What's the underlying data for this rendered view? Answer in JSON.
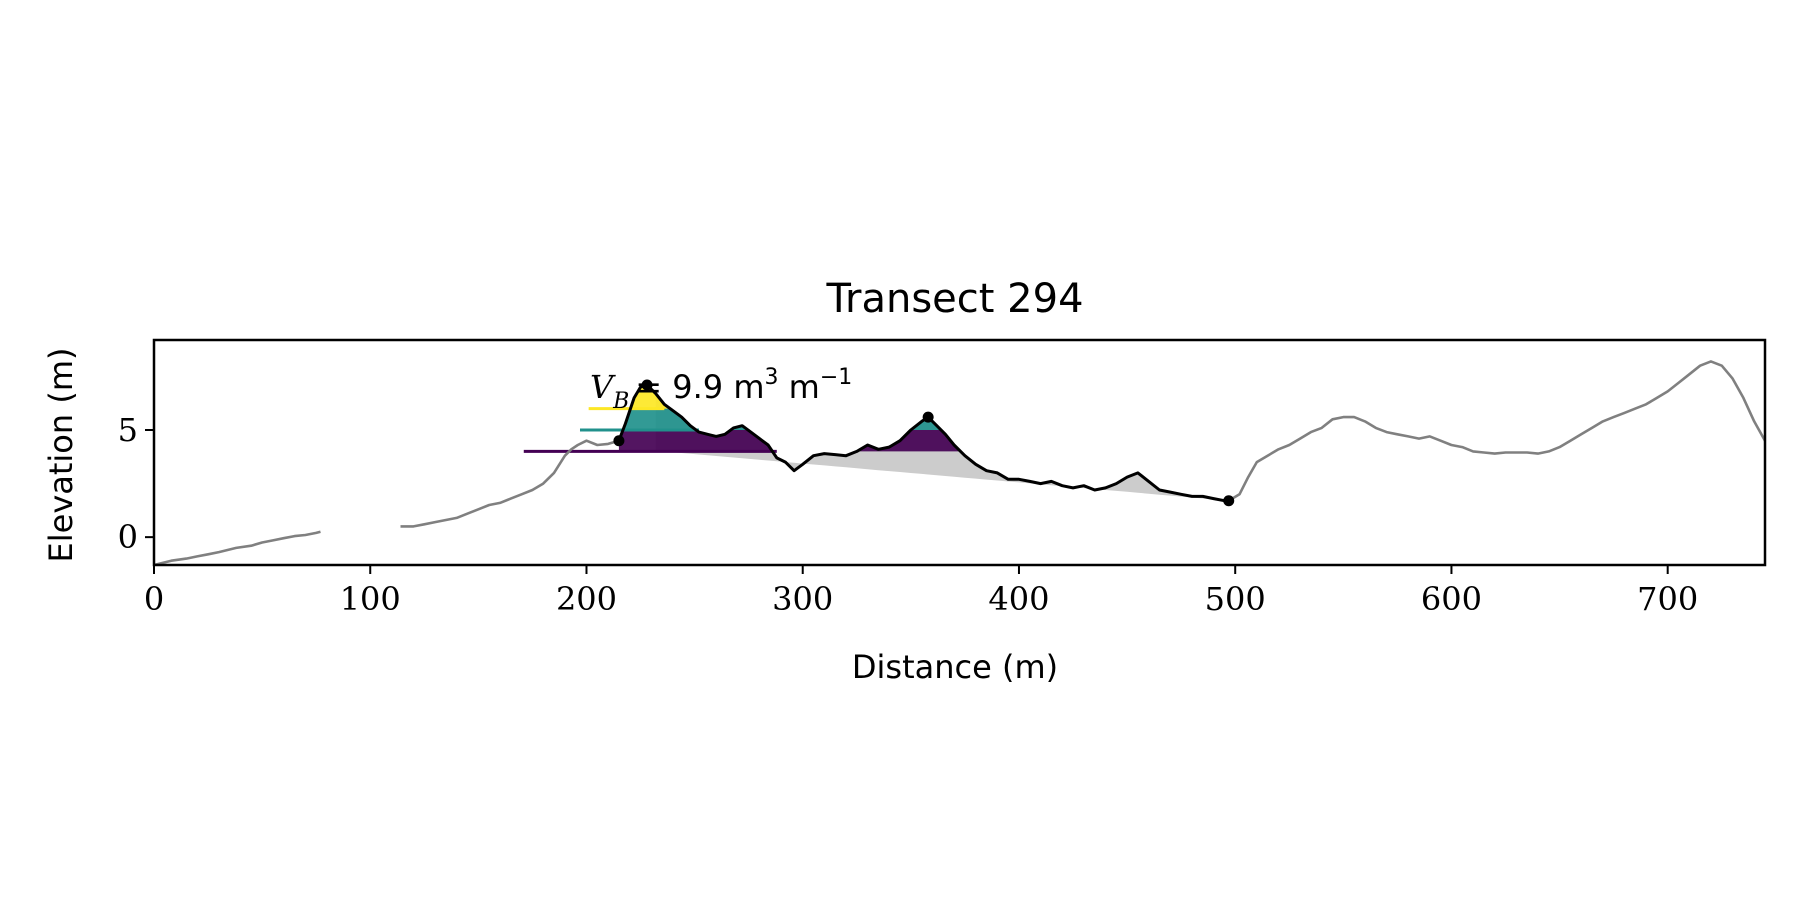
{
  "chart_data": {
    "type": "line",
    "title": "Transect 294",
    "xlabel": "Distance (m)",
    "ylabel": "Elevation (m)",
    "xlim": [
      0,
      745
    ],
    "ylim": [
      -1.3,
      9.2
    ],
    "grid": false,
    "x_ticks": [
      0,
      100,
      200,
      300,
      400,
      500,
      600,
      700
    ],
    "y_ticks": [
      0,
      5
    ],
    "annotation": {
      "symbol": "V",
      "subscript": "B",
      "value_text": "= 9.9 m",
      "unit_sup1": "3",
      "unit_mid": " m",
      "unit_sup2": "−1"
    },
    "colors": {
      "profile": "#808080",
      "dune": "#000000",
      "fill": "#cccccc",
      "level_low": "#440154",
      "level_mid": "#21918c",
      "level_high": "#fde725"
    },
    "profile_segments": [
      {
        "x": [
          0,
          8,
          15,
          20,
          25,
          30,
          38,
          45,
          50,
          55,
          60,
          65,
          70,
          75,
          77
        ],
        "y": [
          -1.3,
          -1.1,
          -1.0,
          -0.9,
          -0.8,
          -0.7,
          -0.5,
          -0.4,
          -0.25,
          -0.15,
          -0.05,
          0.05,
          0.1,
          0.2,
          0.25
        ]
      },
      {
        "x": [
          114,
          120,
          125,
          130,
          135,
          140,
          145,
          150,
          155,
          160,
          165,
          170,
          175,
          180,
          185,
          190,
          193,
          196,
          200,
          205,
          210,
          215
        ],
        "y": [
          0.5,
          0.5,
          0.6,
          0.7,
          0.8,
          0.9,
          1.1,
          1.3,
          1.5,
          1.6,
          1.8,
          2.0,
          2.2,
          2.5,
          3.0,
          3.8,
          4.1,
          4.3,
          4.5,
          4.3,
          4.35,
          4.5
        ]
      },
      {
        "x": [
          497,
          502,
          506,
          510,
          515,
          520,
          525,
          530,
          535,
          540,
          545,
          550,
          555,
          560,
          565,
          570,
          575,
          580,
          585,
          590,
          595,
          600,
          605,
          610,
          615,
          620,
          625,
          630,
          635,
          640,
          645,
          650,
          655,
          660,
          665,
          670,
          675,
          680,
          685,
          690,
          695,
          700,
          705,
          710,
          715,
          720,
          725,
          730,
          735,
          740,
          745
        ],
        "y": [
          1.7,
          2.0,
          2.8,
          3.5,
          3.8,
          4.1,
          4.3,
          4.6,
          4.9,
          5.1,
          5.5,
          5.6,
          5.6,
          5.4,
          5.1,
          4.9,
          4.8,
          4.7,
          4.6,
          4.7,
          4.5,
          4.3,
          4.2,
          4.0,
          3.95,
          3.9,
          3.95,
          3.95,
          3.95,
          3.9,
          4.0,
          4.2,
          4.5,
          4.8,
          5.1,
          5.4,
          5.6,
          5.8,
          6.0,
          6.2,
          6.5,
          6.8,
          7.2,
          7.6,
          8.0,
          8.2,
          8.0,
          7.4,
          6.5,
          5.4,
          4.5
        ]
      }
    ],
    "dune_profile": {
      "x": [
        215,
        218,
        222,
        225,
        228,
        232,
        236,
        240,
        244,
        248,
        252,
        256,
        260,
        264,
        268,
        272,
        276,
        280,
        284,
        288,
        292,
        296,
        300,
        305,
        310,
        315,
        320,
        325,
        330,
        335,
        340,
        345,
        350,
        355,
        358,
        362,
        366,
        370,
        375,
        380,
        385,
        390,
        395,
        400,
        405,
        410,
        415,
        420,
        425,
        430,
        435,
        440,
        445,
        450,
        455,
        460,
        465,
        470,
        475,
        480,
        485,
        490,
        495,
        497
      ],
      "y": [
        4.5,
        5.3,
        6.5,
        7.0,
        7.1,
        6.7,
        6.2,
        5.9,
        5.6,
        5.2,
        4.9,
        4.8,
        4.7,
        4.8,
        5.1,
        5.2,
        4.9,
        4.6,
        4.3,
        3.7,
        3.5,
        3.1,
        3.4,
        3.8,
        3.9,
        3.85,
        3.8,
        4.0,
        4.3,
        4.1,
        4.2,
        4.5,
        5.0,
        5.4,
        5.6,
        5.2,
        4.8,
        4.3,
        3.8,
        3.4,
        3.1,
        3.0,
        2.7,
        2.7,
        2.6,
        2.5,
        2.6,
        2.4,
        2.3,
        2.4,
        2.2,
        2.3,
        2.5,
        2.8,
        3.0,
        2.6,
        2.2,
        2.1,
        2.0,
        1.9,
        1.9,
        1.8,
        1.7,
        1.7
      ]
    },
    "shaded_region": {
      "baseline": {
        "x": [
          230,
          497
        ],
        "y": [
          4.05,
          1.7
        ]
      }
    },
    "crest_levels": [
      {
        "name": "level_low",
        "y": 4.0,
        "x_start": 171,
        "x_end": 288
      },
      {
        "name": "level_mid",
        "y": 5.0,
        "x_start": 197,
        "x_end": 252
      },
      {
        "name": "level_high",
        "y": 6.0,
        "x_start": 201,
        "x_end": 236
      }
    ],
    "markers": [
      {
        "name": "toe-marker",
        "x": 215,
        "y": 4.5
      },
      {
        "name": "crest-marker",
        "x": 228,
        "y": 7.1
      },
      {
        "name": "secondary-crest-marker",
        "x": 358,
        "y": 5.6
      },
      {
        "name": "heel-marker",
        "x": 497,
        "y": 1.7
      }
    ]
  }
}
